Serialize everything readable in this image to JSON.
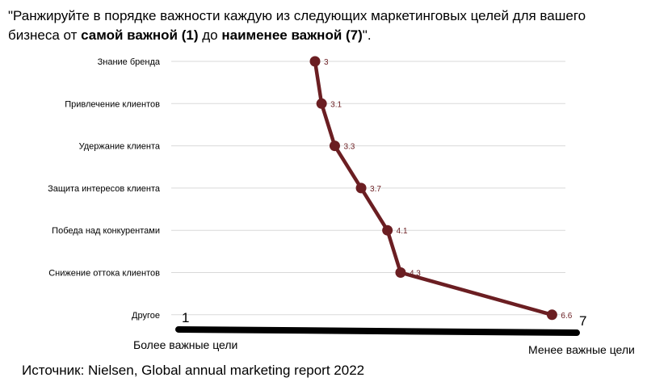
{
  "title": {
    "part1": "\"Ранжируйте в порядке важности каждую из следующих маркетинговых целей для вашего бизнеса от ",
    "bold1": "самой важной (1)",
    "part2": " до ",
    "bold2": "наименее важной (7)",
    "part3": "\"."
  },
  "scale": {
    "min_label": "1",
    "max_label": "7",
    "left_caption": "Более важные цели",
    "right_caption": "Менее важные цели"
  },
  "source": "Источник: Nielsen, Global annual marketing report 2022",
  "colors": {
    "series": "#6b1e22",
    "grid": "#d9d9d9",
    "axis": "#000000",
    "label": "#6b1e22"
  },
  "chart_data": {
    "type": "line",
    "orientation": "horizontal",
    "categories": [
      "Знание бренда",
      "Привлечение клиентов",
      "Удержание клиента",
      "Защита интересов клиента",
      "Победа над конкурентами",
      "Снижение оттока клиентов",
      "Другое"
    ],
    "series": [
      {
        "values": [
          3,
          3.1,
          3.3,
          3.7,
          4.1,
          4.3,
          6.6
        ],
        "labels": [
          "3",
          "3.1",
          "3.3",
          "3.7",
          "4.1",
          "4.3",
          "6.6"
        ]
      }
    ],
    "xlim": [
      1,
      7
    ],
    "grid": true
  }
}
